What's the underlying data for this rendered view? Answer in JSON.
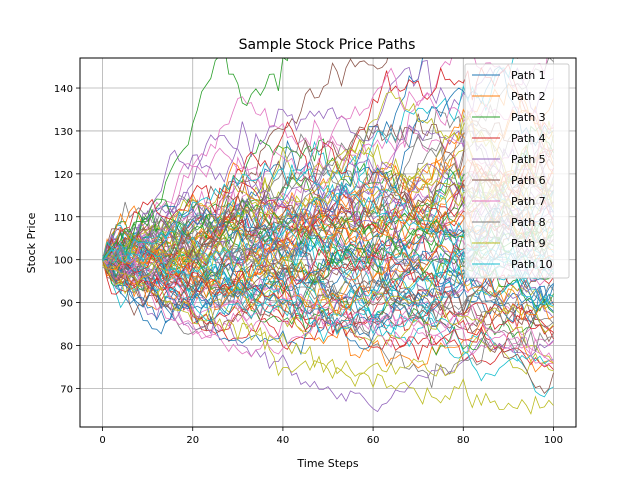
{
  "chart_data": {
    "type": "line",
    "title": "Sample Stock Price Paths",
    "xlabel": "Time Steps",
    "ylabel": "Stock Price",
    "xlim": [
      -5,
      105
    ],
    "ylim": [
      61,
      147
    ],
    "xticks": [
      0,
      20,
      40,
      60,
      80,
      100
    ],
    "yticks": [
      70,
      80,
      90,
      100,
      110,
      120,
      130,
      140
    ],
    "grid": true,
    "legend_position": "top-right",
    "start_price": 100,
    "steps": 100,
    "path_count": 100,
    "series": [
      {
        "name": "Path 1",
        "color": "#1f77b4"
      },
      {
        "name": "Path 2",
        "color": "#ff7f0e"
      },
      {
        "name": "Path 3",
        "color": "#2ca02c"
      },
      {
        "name": "Path 4",
        "color": "#d62728"
      },
      {
        "name": "Path 5",
        "color": "#9467bd"
      },
      {
        "name": "Path 6",
        "color": "#8c564b"
      },
      {
        "name": "Path 7",
        "color": "#e377c2"
      },
      {
        "name": "Path 8",
        "color": "#7f7f7f"
      },
      {
        "name": "Path 9",
        "color": "#bcbd22"
      },
      {
        "name": "Path 10",
        "color": "#17becf"
      }
    ],
    "notable_paths": [
      {
        "color": "#bcbd22",
        "points": [
          [
            0,
            100
          ],
          [
            20,
            87
          ],
          [
            40,
            80
          ],
          [
            60,
            73
          ],
          [
            70,
            69
          ],
          [
            80,
            69
          ],
          [
            90,
            66
          ],
          [
            100,
            66
          ]
        ]
      },
      {
        "color": "#7f7f7f",
        "points": [
          [
            0,
            100
          ],
          [
            20,
            108
          ],
          [
            40,
            116
          ],
          [
            50,
            122
          ],
          [
            60,
            131
          ],
          [
            70,
            127
          ],
          [
            80,
            118
          ],
          [
            90,
            108
          ],
          [
            100,
            100
          ]
        ]
      },
      {
        "color": "#17becf",
        "points": [
          [
            0,
            100
          ],
          [
            15,
            108
          ],
          [
            30,
            119
          ],
          [
            40,
            121
          ],
          [
            55,
            115
          ],
          [
            65,
            109
          ],
          [
            80,
            104
          ],
          [
            100,
            98
          ]
        ]
      },
      {
        "color": "#7f7f7f",
        "points": [
          [
            0,
            100
          ],
          [
            20,
            94
          ],
          [
            40,
            89
          ],
          [
            55,
            84
          ],
          [
            65,
            78
          ],
          [
            72,
            74
          ],
          [
            80,
            76
          ],
          [
            90,
            80
          ],
          [
            100,
            82
          ]
        ]
      }
    ]
  }
}
